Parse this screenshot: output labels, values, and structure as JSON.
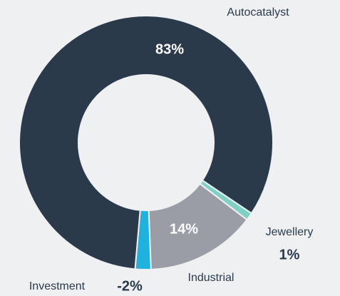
{
  "chart_data": {
    "type": "donut",
    "categories": [
      "Jewellery",
      "Industrial",
      "Investment",
      "Autocatalyst"
    ],
    "values": [
      1,
      14,
      -2,
      83
    ],
    "value_labels": [
      "1%",
      "14%",
      "-2%",
      "83%"
    ],
    "colors": [
      "#7fd1c6",
      "#9a9da5",
      "#1fb2df",
      "#2b3a4b"
    ]
  }
}
